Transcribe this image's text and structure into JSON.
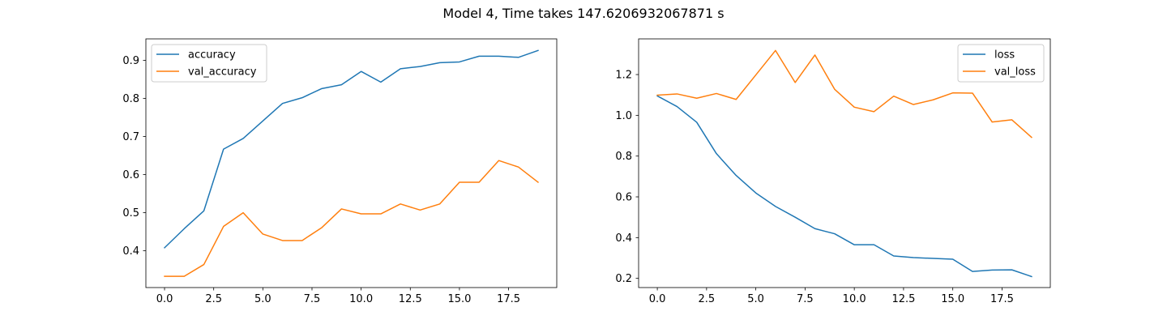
{
  "figure": {
    "title": "Model 4, Time takes 147.6206932067871 s"
  },
  "chart_data": [
    {
      "type": "line",
      "name": "accuracy-chart",
      "title": "",
      "xlabel": "",
      "ylabel": "",
      "xlim": [
        -0.95,
        19.95
      ],
      "ylim": [
        0.3035,
        0.9565
      ],
      "xticks": [
        0.0,
        2.5,
        5.0,
        7.5,
        10.0,
        12.5,
        15.0,
        17.5
      ],
      "xtick_labels": [
        "0.0",
        "2.5",
        "5.0",
        "7.5",
        "10.0",
        "12.5",
        "15.0",
        "17.5"
      ],
      "yticks": [
        0.4,
        0.5,
        0.6,
        0.7,
        0.8,
        0.9
      ],
      "ytick_labels": [
        "0.4",
        "0.5",
        "0.6",
        "0.7",
        "0.8",
        "0.9"
      ],
      "grid": false,
      "legend": "top-left",
      "x": [
        0,
        1,
        2,
        3,
        4,
        5,
        6,
        7,
        8,
        9,
        10,
        11,
        12,
        13,
        14,
        15,
        16,
        17,
        18,
        19
      ],
      "series": [
        {
          "name": "accuracy",
          "color": "#1f77b4",
          "values": [
            0.408,
            0.458,
            0.505,
            0.667,
            0.695,
            0.741,
            0.787,
            0.802,
            0.826,
            0.836,
            0.871,
            0.843,
            0.878,
            0.884,
            0.894,
            0.896,
            0.911,
            0.911,
            0.908,
            0.926
          ]
        },
        {
          "name": "val_accuracy",
          "color": "#ff7f0e",
          "values": [
            0.333,
            0.333,
            0.364,
            0.464,
            0.5,
            0.444,
            0.427,
            0.427,
            0.461,
            0.51,
            0.497,
            0.497,
            0.523,
            0.507,
            0.523,
            0.58,
            0.58,
            0.637,
            0.62,
            0.58
          ]
        }
      ]
    },
    {
      "type": "line",
      "name": "loss-chart",
      "title": "",
      "xlabel": "",
      "ylabel": "",
      "xlim": [
        -0.95,
        19.95
      ],
      "ylim": [
        0.155,
        1.375
      ],
      "xticks": [
        0.0,
        2.5,
        5.0,
        7.5,
        10.0,
        12.5,
        15.0,
        17.5
      ],
      "xtick_labels": [
        "0.0",
        "2.5",
        "5.0",
        "7.5",
        "10.0",
        "12.5",
        "15.0",
        "17.5"
      ],
      "yticks": [
        0.2,
        0.4,
        0.6,
        0.8,
        1.0,
        1.2
      ],
      "ytick_labels": [
        "0.2",
        "0.4",
        "0.6",
        "0.8",
        "1.0",
        "1.2"
      ],
      "grid": false,
      "legend": "top-right",
      "x": [
        0,
        1,
        2,
        3,
        4,
        5,
        6,
        7,
        8,
        9,
        10,
        11,
        12,
        13,
        14,
        15,
        16,
        17,
        18,
        19
      ],
      "series": [
        {
          "name": "loss",
          "color": "#1f77b4",
          "values": [
            1.095,
            1.043,
            0.966,
            0.812,
            0.705,
            0.619,
            0.553,
            0.5,
            0.444,
            0.419,
            0.365,
            0.365,
            0.31,
            0.302,
            0.298,
            0.294,
            0.234,
            0.241,
            0.242,
            0.209
          ]
        },
        {
          "name": "val_loss",
          "color": "#ff7f0e",
          "values": [
            1.099,
            1.105,
            1.084,
            1.107,
            1.078,
            1.198,
            1.318,
            1.161,
            1.296,
            1.128,
            1.04,
            1.018,
            1.094,
            1.053,
            1.076,
            1.11,
            1.109,
            0.967,
            0.978,
            0.892
          ]
        }
      ]
    }
  ]
}
